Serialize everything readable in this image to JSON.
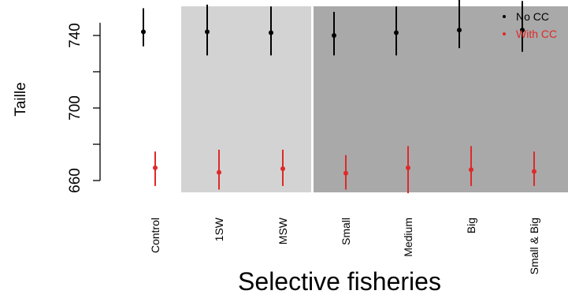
{
  "chart_data": {
    "type": "scatter",
    "xlabel": "Selective fisheries",
    "ylabel": "Taille",
    "categories": [
      "Control",
      "1SW",
      "MSW",
      "Small",
      "Medium",
      "Big",
      "Small & Big"
    ],
    "yticks": [
      660,
      700,
      740
    ],
    "ylim": [
      651,
      762
    ],
    "background_bands": [
      {
        "from_category": "1SW",
        "to_category": "MSW",
        "color": "#d3d3d3"
      },
      {
        "from_category": "Small",
        "to_category": "Small & Big",
        "color": "#a9a9a9"
      }
    ],
    "series": [
      {
        "name": "No CC",
        "color": "#000000",
        "values": [
          742,
          742,
          741.5,
          740,
          741.5,
          743,
          743
        ],
        "lower": [
          734,
          729,
          729,
          729,
          729,
          733,
          731
        ],
        "upper": [
          755,
          757,
          756,
          753,
          756,
          761,
          759
        ]
      },
      {
        "name": "With CC",
        "color": "#df2929",
        "values": [
          667,
          664.5,
          666.5,
          664,
          667,
          666,
          665
        ],
        "lower": [
          657,
          655,
          657,
          655,
          653,
          657,
          657
        ],
        "upper": [
          676,
          677,
          677,
          674,
          679,
          679,
          676
        ]
      }
    ],
    "legend": {
      "position": "top-right",
      "entries": [
        "No CC",
        "With CC"
      ]
    }
  }
}
